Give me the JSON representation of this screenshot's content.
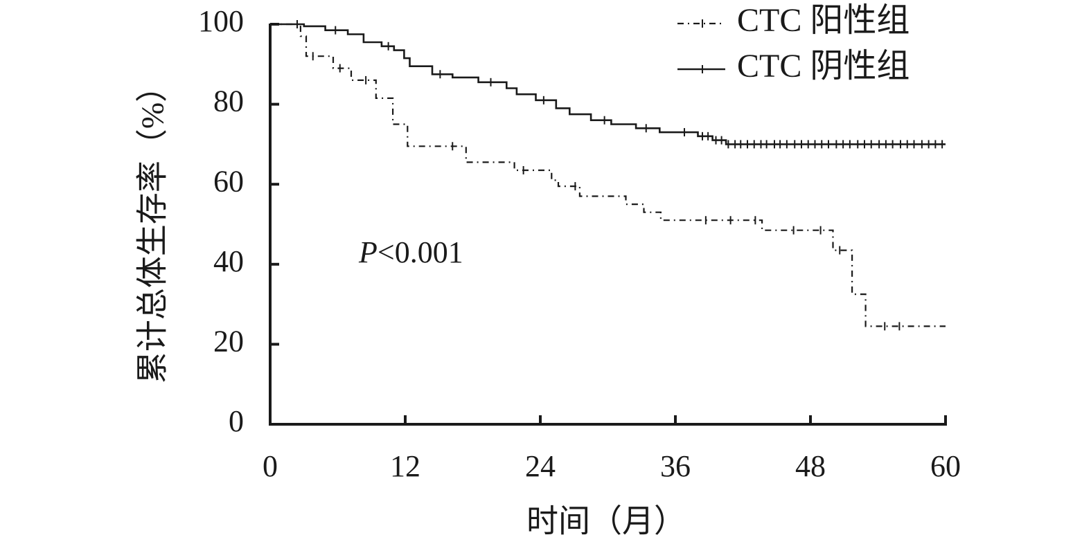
{
  "chart_data": {
    "type": "line",
    "title": "",
    "xlabel": "时间（月）",
    "ylabel": "累计总体生存率（%）",
    "xlim": [
      0,
      60
    ],
    "ylim": [
      0,
      100
    ],
    "x_ticks": [
      "0",
      "12",
      "24",
      "36",
      "48",
      "60"
    ],
    "y_ticks": [
      "0",
      "20",
      "40",
      "60",
      "80",
      "100"
    ],
    "grid": false,
    "legend_position": "top-right",
    "annotation": {
      "prefix": "P",
      "text": "<0.001"
    },
    "series": [
      {
        "name": "CTC 阳性组",
        "style": "dash-dot",
        "color": "#1a1a1a",
        "steps": [
          [
            0,
            100
          ],
          [
            2.7,
            100
          ],
          [
            2.7,
            97
          ],
          [
            3.2,
            97
          ],
          [
            3.2,
            92
          ],
          [
            5.6,
            92
          ],
          [
            5.6,
            89
          ],
          [
            7.2,
            89
          ],
          [
            7.2,
            86
          ],
          [
            9.4,
            86
          ],
          [
            9.4,
            81.5
          ],
          [
            10.9,
            81.5
          ],
          [
            10.9,
            75
          ],
          [
            12.2,
            75
          ],
          [
            12.2,
            69.5
          ],
          [
            17.4,
            69.5
          ],
          [
            17.4,
            65.5
          ],
          [
            21.7,
            65.5
          ],
          [
            21.7,
            63.5
          ],
          [
            25,
            63.5
          ],
          [
            25,
            61
          ],
          [
            25.6,
            61
          ],
          [
            25.6,
            59.5
          ],
          [
            27.5,
            59.5
          ],
          [
            27.5,
            57
          ],
          [
            31.6,
            57
          ],
          [
            31.6,
            55
          ],
          [
            33.2,
            55
          ],
          [
            33.2,
            53
          ],
          [
            34.7,
            53
          ],
          [
            34.7,
            51
          ],
          [
            43.7,
            51
          ],
          [
            43.7,
            48.5
          ],
          [
            50,
            48.5
          ],
          [
            50,
            43.5
          ],
          [
            51.7,
            43.5
          ],
          [
            51.7,
            32.5
          ],
          [
            52.9,
            32.5
          ],
          [
            52.9,
            24.5
          ],
          [
            60,
            24.5
          ]
        ],
        "censor_x": [
          3.8,
          6.2,
          8.5,
          16.2,
          22.5,
          27.1,
          38.7,
          40.9,
          43.1,
          46.5,
          48.9,
          50.6,
          54.6,
          55.9
        ]
      },
      {
        "name": "CTC 阴性组",
        "style": "solid",
        "color": "#1a1a1a",
        "steps": [
          [
            0,
            100
          ],
          [
            3,
            100
          ],
          [
            3,
            99.5
          ],
          [
            4.9,
            99.5
          ],
          [
            4.9,
            98.5
          ],
          [
            6.9,
            98.5
          ],
          [
            6.9,
            97.5
          ],
          [
            8.3,
            97.5
          ],
          [
            8.3,
            95.5
          ],
          [
            9.9,
            95.5
          ],
          [
            9.9,
            94.5
          ],
          [
            11,
            94.5
          ],
          [
            11,
            93.5
          ],
          [
            11.9,
            93.5
          ],
          [
            11.9,
            91.5
          ],
          [
            12.4,
            91.5
          ],
          [
            12.4,
            89.5
          ],
          [
            14.4,
            89.5
          ],
          [
            14.4,
            87.5
          ],
          [
            16.2,
            87.5
          ],
          [
            16.2,
            86.7
          ],
          [
            18.5,
            86.7
          ],
          [
            18.5,
            85.5
          ],
          [
            21,
            85.5
          ],
          [
            21,
            84
          ],
          [
            21.9,
            84
          ],
          [
            21.9,
            82.5
          ],
          [
            23.6,
            82.5
          ],
          [
            23.6,
            81
          ],
          [
            25.4,
            81
          ],
          [
            25.4,
            79
          ],
          [
            26.6,
            79
          ],
          [
            26.6,
            77.5
          ],
          [
            28.5,
            77.5
          ],
          [
            28.5,
            76
          ],
          [
            30.3,
            76
          ],
          [
            30.3,
            75
          ],
          [
            32.5,
            75
          ],
          [
            32.5,
            74
          ],
          [
            34.6,
            74
          ],
          [
            34.6,
            73
          ],
          [
            38,
            73
          ],
          [
            38,
            72
          ],
          [
            39.3,
            72
          ],
          [
            39.3,
            71
          ],
          [
            40.5,
            71
          ],
          [
            40.5,
            70
          ],
          [
            60,
            70
          ]
        ],
        "censor_x": [
          2.4,
          5.8,
          10.5,
          15.1,
          19.6,
          24.3,
          29.7,
          33.4,
          36.8,
          38.4,
          38.9,
          39.6,
          40.1,
          40.7,
          41.3,
          41.8,
          42.4,
          43.0,
          43.6,
          44.1,
          44.8,
          45.3,
          45.9,
          46.6,
          47.2,
          47.8,
          48.4,
          49.0,
          49.6,
          50.3,
          50.9,
          51.5,
          52.2,
          52.8,
          53.4,
          54.1,
          54.7,
          55.3,
          56.0,
          56.6,
          57.2,
          57.9,
          58.5,
          59.1,
          59.7
        ]
      }
    ]
  }
}
